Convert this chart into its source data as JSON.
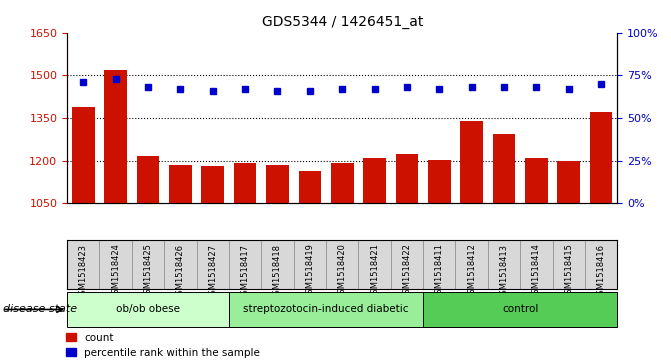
{
  "title": "GDS5344 / 1426451_at",
  "samples": [
    "GSM1518423",
    "GSM1518424",
    "GSM1518425",
    "GSM1518426",
    "GSM1518427",
    "GSM1518417",
    "GSM1518418",
    "GSM1518419",
    "GSM1518420",
    "GSM1518421",
    "GSM1518422",
    "GSM1518411",
    "GSM1518412",
    "GSM1518413",
    "GSM1518414",
    "GSM1518415",
    "GSM1518416"
  ],
  "counts": [
    1390,
    1520,
    1215,
    1185,
    1182,
    1190,
    1183,
    1165,
    1192,
    1208,
    1225,
    1203,
    1340,
    1295,
    1208,
    1198,
    1370
  ],
  "percentiles": [
    71,
    73,
    68,
    67,
    66,
    67,
    66,
    66,
    67,
    67,
    68,
    67,
    68,
    68,
    68,
    67,
    70
  ],
  "groups": [
    {
      "label": "ob/ob obese",
      "start": 0,
      "end": 5
    },
    {
      "label": "streptozotocin-induced diabetic",
      "start": 5,
      "end": 11
    },
    {
      "label": "control",
      "start": 11,
      "end": 17
    }
  ],
  "group_colors": [
    "#ccffcc",
    "#99ee99",
    "#55cc55"
  ],
  "bar_color": "#cc1100",
  "dot_color": "#0000cc",
  "ylim_left": [
    1050,
    1650
  ],
  "ylim_right": [
    0,
    100
  ],
  "yticks_left": [
    1050,
    1200,
    1350,
    1500,
    1650
  ],
  "yticks_right": [
    0,
    25,
    50,
    75,
    100
  ],
  "grid_vals": [
    1200,
    1350,
    1500
  ],
  "disease_state_label": "disease state",
  "legend_count": "count",
  "legend_percentile": "percentile rank within the sample",
  "sample_bg_color": "#d8d8d8",
  "plot_bg": "#ffffff"
}
